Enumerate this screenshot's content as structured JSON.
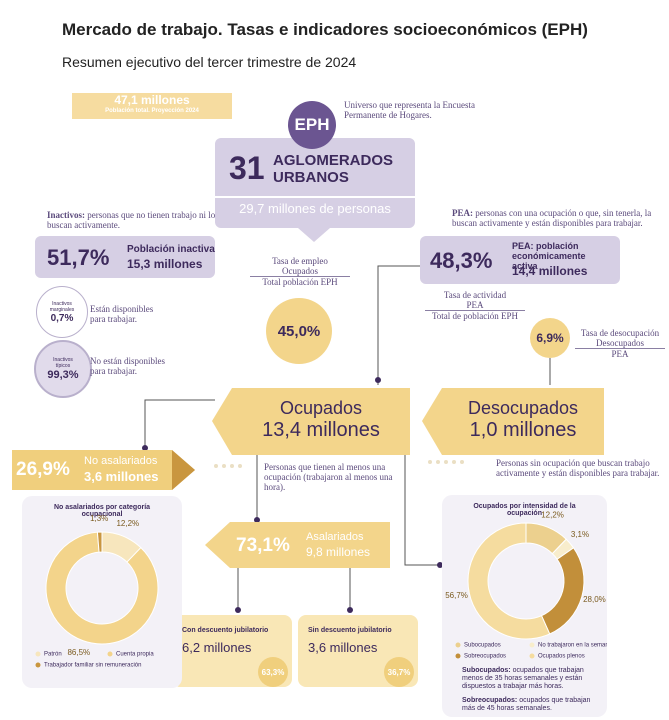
{
  "header": {
    "title": "Mercado de trabajo. Tasas e indicadores socioeconómicos (EPH)",
    "subtitle": "Resumen ejecutivo del tercer trimestre de 2024"
  },
  "population": {
    "amount": "47,1 millones",
    "caption": "Población total. Proyección 2024"
  },
  "eph": {
    "badge": "EPH",
    "description": "Universo que representa la Encuesta Permanente de Hogares."
  },
  "aglomerados": {
    "number": "31",
    "label": "AGLOMERADOS URBANOS",
    "persons": "29,7 millones de personas"
  },
  "inactivos": {
    "term": "Inactivos:",
    "definition": "personas que no tienen trabajo ni lo buscan activamente.",
    "rate": "51,7%",
    "label": "Población inactiva",
    "amount": "15,3 millones"
  },
  "marginales": {
    "icon_label": "Inactivos marginales",
    "pct": "0,7%",
    "note": "Están disponibles para trabajar."
  },
  "tipicos": {
    "icon_label": "Inactivos típicos",
    "pct": "99,3%",
    "note": "No están disponibles para trabajar."
  },
  "pea": {
    "term": "PEA:",
    "definition": "personas con una ocupación o que, sin tenerla, la buscan activamente y están disponibles para trabajar.",
    "rate": "48,3%",
    "label": "PEA: población económicamente activa",
    "amount": "14,4 millones"
  },
  "tasa_empleo": {
    "label": "Tasa de empleo",
    "numerator": "Ocupados",
    "denominator": "Total población EPH",
    "value": "45,0%"
  },
  "tasa_actividad": {
    "label": "Tasa de actividad",
    "numerator": "PEA",
    "denominator": "Total de población EPH"
  },
  "tasa_desocupacion": {
    "label": "Tasa de desocupación",
    "numerator": "Desocupados",
    "denominator": "PEA",
    "value": "6,9%"
  },
  "ocupados": {
    "label": "Ocupados",
    "amount": "13,4 millones",
    "note": "Personas que tienen al menos una ocupación (trabajaron al menos una hora)."
  },
  "desocupados": {
    "label": "Desocupados",
    "amount": "1,0 millones",
    "note": "Personas sin ocupación que buscan trabajo activamente y están disponibles para trabajar."
  },
  "no_asalariados": {
    "pct": "26,9%",
    "label": "No asalariados",
    "amount": "3,6 millones"
  },
  "asalariados": {
    "pct": "73,1%",
    "label": "Asalariados",
    "amount": "9,8 millones"
  },
  "con_descuento": {
    "label": "Con descuento jubilatorio",
    "amount": "6,2 millones",
    "pct": "63,3%"
  },
  "sin_descuento": {
    "label": "Sin descuento jubilatorio",
    "amount": "3,6 millones",
    "pct": "36,7%"
  },
  "definitions": [
    {
      "term": "Subocupados:",
      "text": "ocupados que trabajan menos de 35 horas semanales y están dispuestos a trabajar más horas."
    },
    {
      "term": "Sobreocupados:",
      "text": "ocupados que trabajan más de 45 horas semanales."
    }
  ],
  "chart_data": [
    {
      "type": "donut",
      "title": "No asalariados por categoría ocupacional",
      "categories": [
        "Patrón",
        "Cuenta propia",
        "Trabajador familiar sin remuneración"
      ],
      "values": [
        12.2,
        86.5,
        1.3
      ],
      "value_labels": [
        "12,2%",
        "86,5%",
        "1,3%"
      ],
      "colors": [
        "#f7e6bd",
        "#f3d48b",
        "#c9963f"
      ]
    },
    {
      "type": "donut",
      "title": "Ocupados por intensidad de la ocupación",
      "categories": [
        "Subocupados",
        "No trabajaron en la semana",
        "Sobreocupados",
        "Ocupados plenos"
      ],
      "values": [
        12.2,
        3.1,
        28.0,
        56.7
      ],
      "value_labels": [
        "12,2%",
        "3,1%",
        "28,0%",
        "56,7%"
      ],
      "colors": [
        "#ecd08e",
        "#f8edcc",
        "#c28f3a",
        "#f5dc9f"
      ]
    }
  ]
}
